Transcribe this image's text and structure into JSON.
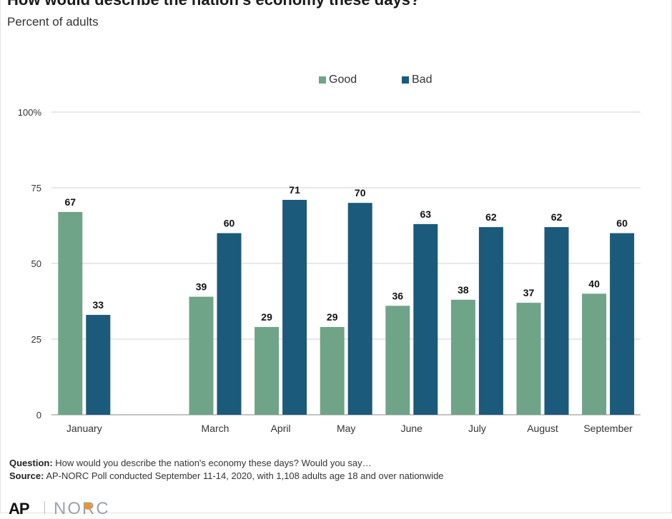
{
  "header": {
    "title": "How would describe the nation's economy these days?",
    "subtitle": "Percent of adults"
  },
  "colors": {
    "good": "#6fa488",
    "bad": "#1b5a7a",
    "grid": "#d0d0d0",
    "axis": "#888888"
  },
  "chart_data": {
    "type": "bar",
    "title": "How would describe the nation's economy these days?",
    "subtitle": "Percent of adults",
    "categories": [
      "January",
      "March",
      "April",
      "May",
      "June",
      "July",
      "August",
      "September"
    ],
    "series": [
      {
        "name": "Good",
        "values": [
          67,
          39,
          29,
          29,
          36,
          38,
          37,
          40
        ]
      },
      {
        "name": "Bad",
        "values": [
          33,
          60,
          71,
          70,
          63,
          62,
          62,
          60
        ]
      }
    ],
    "ylim": [
      0,
      100
    ],
    "yticks": [
      "0",
      "25",
      "50",
      "75",
      "100%"
    ],
    "grid": true,
    "legend": "top-center"
  },
  "footer": {
    "question_label": "Question:",
    "question_text": "How would you describe the nation's economy these days? Would you say…",
    "source_label": "Source:",
    "source_text": "AP-NORC Poll conducted September 11-14, 2020, with 1,108 adults age 18 and over nationwide"
  },
  "logos": {
    "ap": "AP",
    "norc": "NORC"
  }
}
